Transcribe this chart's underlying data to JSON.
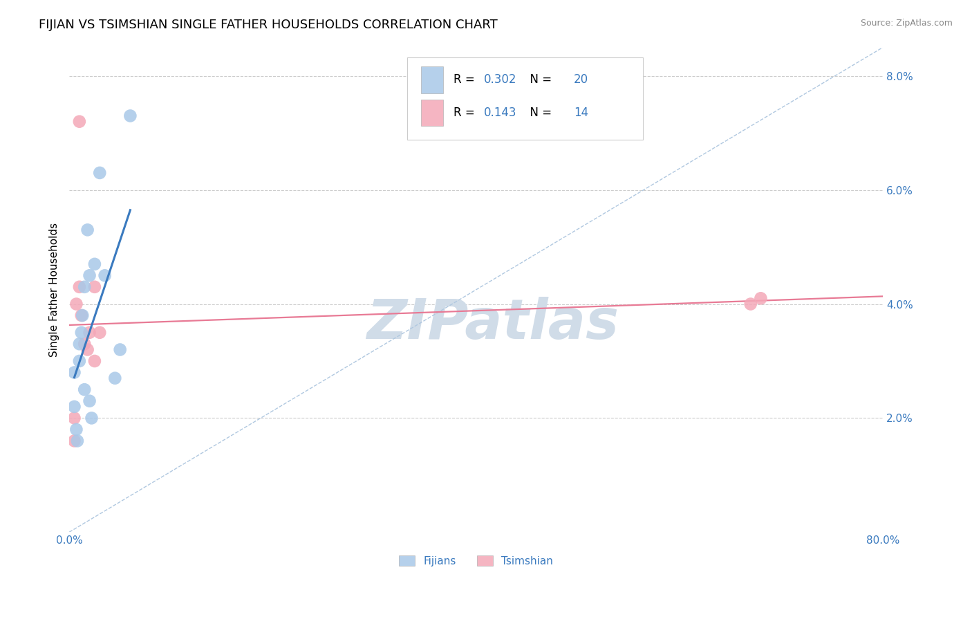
{
  "title": "FIJIAN VS TSIMSHIAN SINGLE FATHER HOUSEHOLDS CORRELATION CHART",
  "source": "Source: ZipAtlas.com",
  "ylabel": "Single Father Households",
  "xlim": [
    0.0,
    0.8
  ],
  "ylim": [
    0.0,
    0.085
  ],
  "xticks": [
    0.0,
    0.2,
    0.4,
    0.6,
    0.8
  ],
  "yticks": [
    0.0,
    0.02,
    0.04,
    0.06,
    0.08
  ],
  "xticklabels": [
    "0.0%",
    "",
    "",
    "",
    "80.0%"
  ],
  "yticklabels": [
    "",
    "2.0%",
    "4.0%",
    "6.0%",
    "8.0%"
  ],
  "fijians_x": [
    0.005,
    0.005,
    0.007,
    0.008,
    0.01,
    0.01,
    0.012,
    0.013,
    0.015,
    0.015,
    0.018,
    0.02,
    0.02,
    0.022,
    0.025,
    0.03,
    0.035,
    0.045,
    0.05,
    0.06
  ],
  "fijians_y": [
    0.028,
    0.022,
    0.018,
    0.016,
    0.03,
    0.033,
    0.035,
    0.038,
    0.043,
    0.025,
    0.053,
    0.045,
    0.023,
    0.02,
    0.047,
    0.063,
    0.045,
    0.027,
    0.032,
    0.073
  ],
  "tsimshian_x": [
    0.005,
    0.005,
    0.007,
    0.01,
    0.01,
    0.012,
    0.015,
    0.018,
    0.02,
    0.025,
    0.025,
    0.03,
    0.67,
    0.68
  ],
  "tsimshian_y": [
    0.02,
    0.016,
    0.04,
    0.072,
    0.043,
    0.038,
    0.033,
    0.032,
    0.035,
    0.03,
    0.043,
    0.035,
    0.04,
    0.041
  ],
  "fijians_color": "#a8c8e8",
  "tsimshian_color": "#f4a8b8",
  "fijians_trendline_color": "#3a7abf",
  "tsimshian_trendline_color": "#e87a95",
  "dashed_line_color": "#b0c8e0",
  "fijians_r": 0.302,
  "fijians_n": 20,
  "tsimshian_r": 0.143,
  "tsimshian_n": 14,
  "value_color": "#3a7abf",
  "legend_label1": "Fijians",
  "legend_label2": "Tsimshian",
  "watermark": "ZIPatlas",
  "watermark_color": "#d0dce8",
  "background_color": "#ffffff",
  "grid_color": "#cccccc",
  "title_fontsize": 13,
  "axis_label_fontsize": 11,
  "tick_fontsize": 11,
  "tick_color": "#3a7abf",
  "source_color": "#888888"
}
